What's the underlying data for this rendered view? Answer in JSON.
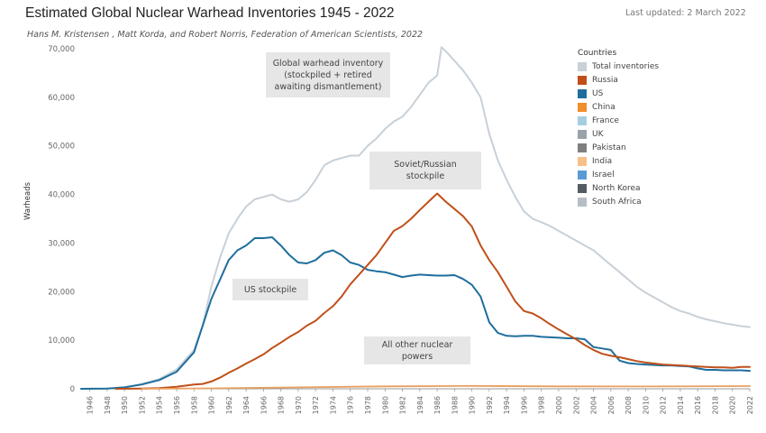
{
  "header": {
    "title": "Estimated Global Nuclear Warhead Inventories 1945 - 2022",
    "subtitle": "Hans M. Kristensen , Matt Korda, and Robert Norris, Federation of American Scientists, 2022",
    "updated": "Last updated: 2 March 2022"
  },
  "annotations": {
    "global": "Global warhead inventory\n(stockpiled + retired\nawaiting dismantlement)",
    "soviet": "Soviet/Russian\nstockpile",
    "us": "US stockpile",
    "others": "All other nuclear\npowers"
  },
  "legend": {
    "title": "Countries",
    "items": [
      {
        "label": "Total inventories",
        "color": "#c8d0d8"
      },
      {
        "label": "Russia",
        "color": "#c0501a"
      },
      {
        "label": "US",
        "color": "#1f6e9c"
      },
      {
        "label": "China",
        "color": "#f28e2b"
      },
      {
        "label": "France",
        "color": "#a6cee3"
      },
      {
        "label": "UK",
        "color": "#9aa3ab"
      },
      {
        "label": "Pakistan",
        "color": "#7f7f7f"
      },
      {
        "label": "India",
        "color": "#f7c08a"
      },
      {
        "label": "Israel",
        "color": "#5b9bd5"
      },
      {
        "label": "North Korea",
        "color": "#555b61"
      },
      {
        "label": "South Africa",
        "color": "#b8bec6"
      }
    ]
  },
  "chart_data": {
    "type": "line",
    "title": "Estimated Global Nuclear Warhead Inventories 1945 - 2022",
    "ylabel": "Warheads",
    "xlabel": "",
    "xlim": [
      1945,
      2022
    ],
    "ylim": [
      0,
      70000
    ],
    "yticks": [
      0,
      10000,
      20000,
      30000,
      40000,
      50000,
      60000,
      70000
    ],
    "ytick_labels": [
      "0",
      "10,000",
      "20,000",
      "30,000",
      "40,000",
      "50,000",
      "60,000",
      "70,000"
    ],
    "xticks": [
      1946,
      1948,
      1950,
      1952,
      1954,
      1956,
      1958,
      1960,
      1962,
      1964,
      1966,
      1968,
      1970,
      1972,
      1974,
      1976,
      1978,
      1980,
      1982,
      1984,
      1986,
      1988,
      1990,
      1992,
      1994,
      1996,
      1998,
      2000,
      2002,
      2004,
      2006,
      2008,
      2010,
      2012,
      2014,
      2016,
      2018,
      2020,
      2022
    ],
    "grid": false,
    "legend_position": "right",
    "series": [
      {
        "name": "Total inventories",
        "color": "#c8d0d8",
        "points": [
          [
            1945,
            2
          ],
          [
            1948,
            50
          ],
          [
            1950,
            300
          ],
          [
            1952,
            1000
          ],
          [
            1954,
            2000
          ],
          [
            1956,
            4000
          ],
          [
            1958,
            8000
          ],
          [
            1959,
            13000
          ],
          [
            1960,
            21000
          ],
          [
            1961,
            27000
          ],
          [
            1962,
            32000
          ],
          [
            1963,
            35000
          ],
          [
            1964,
            37500
          ],
          [
            1965,
            39000
          ],
          [
            1966,
            39500
          ],
          [
            1967,
            40000
          ],
          [
            1968,
            39000
          ],
          [
            1969,
            38500
          ],
          [
            1970,
            39000
          ],
          [
            1971,
            40500
          ],
          [
            1972,
            43000
          ],
          [
            1973,
            46000
          ],
          [
            1974,
            47000
          ],
          [
            1975,
            47500
          ],
          [
            1976,
            48000
          ],
          [
            1977,
            48000
          ],
          [
            1978,
            50000
          ],
          [
            1979,
            51500
          ],
          [
            1980,
            53500
          ],
          [
            1981,
            55000
          ],
          [
            1982,
            56000
          ],
          [
            1983,
            58000
          ],
          [
            1984,
            60500
          ],
          [
            1985,
            63000
          ],
          [
            1986,
            64500
          ],
          [
            1986.5,
            70300
          ],
          [
            1987,
            69500
          ],
          [
            1988,
            67500
          ],
          [
            1989,
            65500
          ],
          [
            1990,
            63000
          ],
          [
            1991,
            60000
          ],
          [
            1992,
            52500
          ],
          [
            1993,
            47000
          ],
          [
            1994,
            43000
          ],
          [
            1995,
            39500
          ],
          [
            1996,
            36500
          ],
          [
            1997,
            35000
          ],
          [
            1998,
            34300
          ],
          [
            1999,
            33500
          ],
          [
            2000,
            32500
          ],
          [
            2001,
            31500
          ],
          [
            2002,
            30500
          ],
          [
            2003,
            29500
          ],
          [
            2004,
            28500
          ],
          [
            2005,
            27000
          ],
          [
            2006,
            25500
          ],
          [
            2007,
            24000
          ],
          [
            2008,
            22500
          ],
          [
            2009,
            21000
          ],
          [
            2010,
            19800
          ],
          [
            2011,
            18800
          ],
          [
            2012,
            17800
          ],
          [
            2013,
            16800
          ],
          [
            2014,
            16000
          ],
          [
            2015,
            15500
          ],
          [
            2016,
            14800
          ],
          [
            2017,
            14300
          ],
          [
            2018,
            13900
          ],
          [
            2019,
            13500
          ],
          [
            2020,
            13200
          ],
          [
            2021,
            12900
          ],
          [
            2022,
            12700
          ]
        ]
      },
      {
        "name": "US",
        "color": "#1f6e9c",
        "points": [
          [
            1945,
            2
          ],
          [
            1948,
            50
          ],
          [
            1950,
            300
          ],
          [
            1952,
            900
          ],
          [
            1954,
            1800
          ],
          [
            1956,
            3500
          ],
          [
            1958,
            7500
          ],
          [
            1959,
            13000
          ],
          [
            1960,
            18500
          ],
          [
            1961,
            22500
          ],
          [
            1962,
            26500
          ],
          [
            1963,
            28500
          ],
          [
            1964,
            29500
          ],
          [
            1965,
            31000
          ],
          [
            1966,
            31000
          ],
          [
            1967,
            31200
          ],
          [
            1968,
            29500
          ],
          [
            1969,
            27500
          ],
          [
            1970,
            26000
          ],
          [
            1971,
            25800
          ],
          [
            1972,
            26500
          ],
          [
            1973,
            28000
          ],
          [
            1974,
            28500
          ],
          [
            1975,
            27500
          ],
          [
            1976,
            26000
          ],
          [
            1977,
            25500
          ],
          [
            1978,
            24500
          ],
          [
            1979,
            24200
          ],
          [
            1980,
            24000
          ],
          [
            1981,
            23500
          ],
          [
            1982,
            23000
          ],
          [
            1983,
            23300
          ],
          [
            1984,
            23500
          ],
          [
            1985,
            23400
          ],
          [
            1986,
            23300
          ],
          [
            1987,
            23300
          ],
          [
            1988,
            23400
          ],
          [
            1989,
            22600
          ],
          [
            1990,
            21400
          ],
          [
            1991,
            19000
          ],
          [
            1992,
            13700
          ],
          [
            1993,
            11500
          ],
          [
            1994,
            10900
          ],
          [
            1995,
            10800
          ],
          [
            1996,
            10900
          ],
          [
            1997,
            10900
          ],
          [
            1998,
            10700
          ],
          [
            1999,
            10600
          ],
          [
            2000,
            10500
          ],
          [
            2001,
            10400
          ],
          [
            2002,
            10400
          ],
          [
            2003,
            10200
          ],
          [
            2004,
            8600
          ],
          [
            2005,
            8300
          ],
          [
            2006,
            8000
          ],
          [
            2007,
            5800
          ],
          [
            2008,
            5300
          ],
          [
            2009,
            5100
          ],
          [
            2010,
            5000
          ],
          [
            2011,
            4900
          ],
          [
            2012,
            4800
          ],
          [
            2013,
            4800
          ],
          [
            2014,
            4700
          ],
          [
            2015,
            4600
          ],
          [
            2016,
            4200
          ],
          [
            2017,
            3900
          ],
          [
            2018,
            3900
          ],
          [
            2019,
            3800
          ],
          [
            2020,
            3800
          ],
          [
            2021,
            3800
          ],
          [
            2022,
            3700
          ]
        ]
      },
      {
        "name": "Russia",
        "color": "#c0501a",
        "points": [
          [
            1949,
            1
          ],
          [
            1952,
            50
          ],
          [
            1954,
            150
          ],
          [
            1956,
            400
          ],
          [
            1958,
            900
          ],
          [
            1959,
            1000
          ],
          [
            1960,
            1500
          ],
          [
            1961,
            2300
          ],
          [
            1962,
            3300
          ],
          [
            1963,
            4200
          ],
          [
            1964,
            5200
          ],
          [
            1965,
            6100
          ],
          [
            1966,
            7100
          ],
          [
            1967,
            8400
          ],
          [
            1968,
            9500
          ],
          [
            1969,
            10700
          ],
          [
            1970,
            11700
          ],
          [
            1971,
            13000
          ],
          [
            1972,
            14000
          ],
          [
            1973,
            15600
          ],
          [
            1974,
            17000
          ],
          [
            1975,
            19000
          ],
          [
            1976,
            21500
          ],
          [
            1977,
            23500
          ],
          [
            1978,
            25500
          ],
          [
            1979,
            27500
          ],
          [
            1980,
            30000
          ],
          [
            1981,
            32500
          ],
          [
            1982,
            33500
          ],
          [
            1983,
            35000
          ],
          [
            1984,
            36800
          ],
          [
            1985,
            38500
          ],
          [
            1986,
            40200
          ],
          [
            1987,
            38500
          ],
          [
            1988,
            37000
          ],
          [
            1989,
            35500
          ],
          [
            1990,
            33400
          ],
          [
            1991,
            29500
          ],
          [
            1992,
            26500
          ],
          [
            1993,
            24000
          ],
          [
            1994,
            21000
          ],
          [
            1995,
            18000
          ],
          [
            1996,
            16000
          ],
          [
            1997,
            15500
          ],
          [
            1998,
            14500
          ],
          [
            1999,
            13300
          ],
          [
            2000,
            12200
          ],
          [
            2001,
            11200
          ],
          [
            2002,
            10200
          ],
          [
            2003,
            9000
          ],
          [
            2004,
            8000
          ],
          [
            2005,
            7200
          ],
          [
            2006,
            6800
          ],
          [
            2007,
            6500
          ],
          [
            2008,
            6100
          ],
          [
            2009,
            5700
          ],
          [
            2010,
            5400
          ],
          [
            2011,
            5200
          ],
          [
            2012,
            5000
          ],
          [
            2013,
            4900
          ],
          [
            2014,
            4800
          ],
          [
            2015,
            4700
          ],
          [
            2016,
            4600
          ],
          [
            2017,
            4500
          ],
          [
            2018,
            4400
          ],
          [
            2019,
            4400
          ],
          [
            2020,
            4300
          ],
          [
            2021,
            4500
          ],
          [
            2022,
            4500
          ]
        ]
      },
      {
        "name": "All other nuclear powers",
        "color": "#e8a060",
        "points": [
          [
            1952,
            0
          ],
          [
            1960,
            100
          ],
          [
            1970,
            300
          ],
          [
            1980,
            500
          ],
          [
            1990,
            600
          ],
          [
            2000,
            500
          ],
          [
            2010,
            480
          ],
          [
            2022,
            560
          ]
        ]
      }
    ]
  }
}
